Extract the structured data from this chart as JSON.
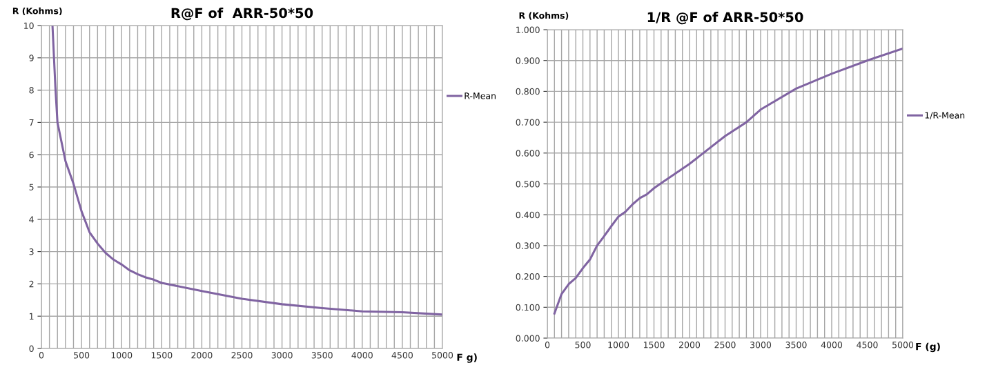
{
  "chart_data": [
    {
      "type": "line",
      "title": "R@F of  ARR-50*50",
      "ylabel": "R (Kohms)",
      "xlabel": "F g)",
      "grid": true,
      "legend": "right",
      "marker": "none",
      "line_style": "solid",
      "xlim": [
        0,
        5000
      ],
      "ylim": [
        0,
        10
      ],
      "xticks": [
        0,
        {
          "value": 100,
          "label": null
        },
        {
          "value": 200,
          "label": null
        },
        {
          "value": 300,
          "label": null
        },
        {
          "value": 400,
          "label": null
        },
        500,
        {
          "value": 600,
          "label": null
        },
        {
          "value": 700,
          "label": null
        },
        {
          "value": 800,
          "label": null
        },
        {
          "value": 900,
          "label": null
        },
        1000,
        {
          "value": 1100,
          "label": null
        },
        {
          "value": 1200,
          "label": null
        },
        {
          "value": 1300,
          "label": null
        },
        {
          "value": 1400,
          "label": null
        },
        1500,
        {
          "value": 1600,
          "label": null
        },
        {
          "value": 1700,
          "label": null
        },
        {
          "value": 1800,
          "label": null
        },
        {
          "value": 1900,
          "label": null
        },
        2000,
        {
          "value": 2100,
          "label": null
        },
        {
          "value": 2200,
          "label": null
        },
        {
          "value": 2300,
          "label": null
        },
        {
          "value": 2400,
          "label": null
        },
        2500,
        {
          "value": 2600,
          "label": null
        },
        {
          "value": 2700,
          "label": null
        },
        {
          "value": 2800,
          "label": null
        },
        {
          "value": 2900,
          "label": null
        },
        3000,
        {
          "value": 3100,
          "label": null
        },
        {
          "value": 3200,
          "label": null
        },
        {
          "value": 3300,
          "label": null
        },
        {
          "value": 3400,
          "label": null
        },
        3500,
        {
          "value": 3600,
          "label": null
        },
        {
          "value": 3700,
          "label": null
        },
        {
          "value": 3800,
          "label": null
        },
        {
          "value": 3900,
          "label": null
        },
        4000,
        {
          "value": 4100,
          "label": null
        },
        {
          "value": 4200,
          "label": null
        },
        {
          "value": 4300,
          "label": null
        },
        {
          "value": 4400,
          "label": null
        },
        4500,
        {
          "value": 4600,
          "label": null
        },
        {
          "value": 4700,
          "label": null
        },
        {
          "value": 4800,
          "label": null
        },
        {
          "value": 4900,
          "label": null
        },
        5000
      ],
      "yticks": [
        0,
        1,
        2,
        3,
        4,
        5,
        6,
        7,
        8,
        9,
        10
      ],
      "series": [
        {
          "name": "R-Mean",
          "color": "#8064a2",
          "x": [
            138,
            174,
            200,
            300,
            400,
            500,
            600,
            700,
            800,
            900,
            1000,
            1100,
            1200,
            1300,
            1400,
            1500,
            2000,
            2500,
            3000,
            3500,
            4000,
            4500,
            5000
          ],
          "values": [
            10,
            8.1,
            7.0,
            5.8,
            5.1,
            4.25,
            3.6,
            3.25,
            2.96,
            2.75,
            2.6,
            2.42,
            2.3,
            2.2,
            2.13,
            2.03,
            1.78,
            1.54,
            1.37,
            1.25,
            1.15,
            1.12,
            1.05
          ]
        }
      ]
    },
    {
      "type": "line",
      "title": "1/R @F of ARR-50*50",
      "ylabel": "R (Kohms)",
      "xlabel": "F (g)",
      "grid": true,
      "legend": "right",
      "marker": "none",
      "line_style": "solid",
      "xlim": [
        0,
        5000
      ],
      "ylim": [
        0,
        1
      ],
      "xticks": [
        0,
        {
          "value": 100,
          "label": null
        },
        {
          "value": 200,
          "label": null
        },
        {
          "value": 300,
          "label": null
        },
        {
          "value": 400,
          "label": null
        },
        500,
        {
          "value": 600,
          "label": null
        },
        {
          "value": 700,
          "label": null
        },
        {
          "value": 800,
          "label": null
        },
        {
          "value": 900,
          "label": null
        },
        1000,
        {
          "value": 1100,
          "label": null
        },
        {
          "value": 1200,
          "label": null
        },
        {
          "value": 1300,
          "label": null
        },
        {
          "value": 1400,
          "label": null
        },
        1500,
        {
          "value": 1600,
          "label": null
        },
        {
          "value": 1700,
          "label": null
        },
        {
          "value": 1800,
          "label": null
        },
        {
          "value": 1900,
          "label": null
        },
        2000,
        {
          "value": 2100,
          "label": null
        },
        {
          "value": 2200,
          "label": null
        },
        {
          "value": 2300,
          "label": null
        },
        {
          "value": 2400,
          "label": null
        },
        2500,
        {
          "value": 2600,
          "label": null
        },
        {
          "value": 2700,
          "label": null
        },
        {
          "value": 2800,
          "label": null
        },
        {
          "value": 2900,
          "label": null
        },
        3000,
        {
          "value": 3100,
          "label": null
        },
        {
          "value": 3200,
          "label": null
        },
        {
          "value": 3300,
          "label": null
        },
        {
          "value": 3400,
          "label": null
        },
        3500,
        {
          "value": 3600,
          "label": null
        },
        {
          "value": 3700,
          "label": null
        },
        {
          "value": 3800,
          "label": null
        },
        {
          "value": 3900,
          "label": null
        },
        4000,
        {
          "value": 4100,
          "label": null
        },
        {
          "value": 4200,
          "label": null
        },
        {
          "value": 4300,
          "label": null
        },
        {
          "value": 4400,
          "label": null
        },
        4500,
        {
          "value": 4600,
          "label": null
        },
        {
          "value": 4700,
          "label": null
        },
        {
          "value": 4800,
          "label": null
        },
        {
          "value": 4900,
          "label": null
        },
        5000
      ],
      "yticks": [
        {
          "value": 0,
          "label": "0.000"
        },
        {
          "value": 0.1,
          "label": "0.100"
        },
        {
          "value": 0.2,
          "label": "0.200"
        },
        {
          "value": 0.3,
          "label": "0.300"
        },
        {
          "value": 0.4,
          "label": "0.400"
        },
        {
          "value": 0.5,
          "label": "0.500"
        },
        {
          "value": 0.6,
          "label": "0.600"
        },
        {
          "value": 0.7,
          "label": "0.700"
        },
        {
          "value": 0.8,
          "label": "0.800"
        },
        {
          "value": 0.9,
          "label": "0.900"
        },
        {
          "value": 1,
          "label": "1.000"
        }
      ],
      "series": [
        {
          "name": "1/R-Mean",
          "color": "#8064a2",
          "x": [
            100,
            200,
            300,
            400,
            500,
            600,
            700,
            800,
            900,
            1000,
            1100,
            1200,
            1300,
            1400,
            1500,
            1600,
            2000,
            2500,
            2800,
            3000,
            3500,
            4000,
            4500,
            5000
          ],
          "values": [
            0.08,
            0.143,
            0.175,
            0.195,
            0.227,
            0.255,
            0.3,
            0.331,
            0.363,
            0.394,
            0.41,
            0.434,
            0.454,
            0.466,
            0.486,
            0.502,
            0.565,
            0.655,
            0.7,
            0.741,
            0.809,
            0.857,
            0.9,
            0.939
          ]
        }
      ]
    }
  ]
}
